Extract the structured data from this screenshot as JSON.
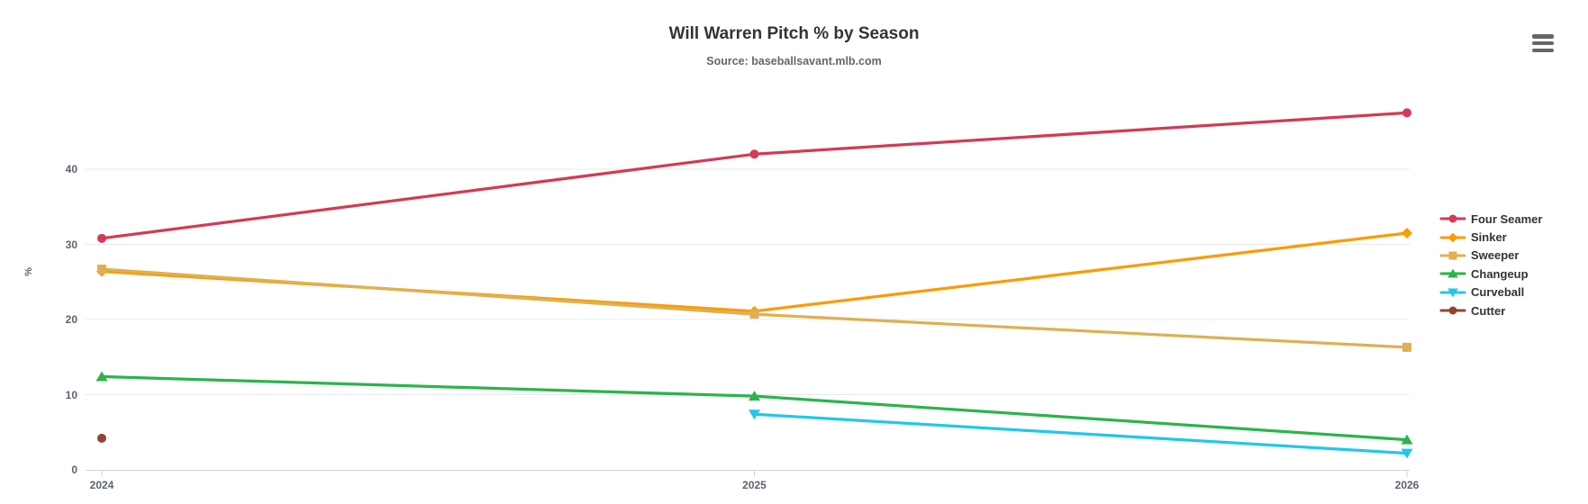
{
  "chart_data": {
    "type": "line",
    "title": "Will Warren Pitch % by Season",
    "subtitle": "Source: baseballsavant.mlb.com",
    "xlabel": "",
    "ylabel": "%",
    "categories": [
      "2024",
      "2025",
      "2026"
    ],
    "yticks": [
      0,
      10,
      20,
      30,
      40
    ],
    "ylim": [
      0,
      50
    ],
    "grid": "horizontal",
    "legend_position": "right",
    "series": [
      {
        "name": "Four Seamer",
        "color": "#D43A55",
        "marker": "circle",
        "values": [
          30.8,
          42.0,
          47.5
        ]
      },
      {
        "name": "Sinker",
        "color": "#FD9A00",
        "marker": "diamond",
        "values": [
          26.4,
          21.1,
          31.5
        ]
      },
      {
        "name": "Sweeper",
        "color": "#DFB052",
        "marker": "square",
        "values": [
          26.7,
          20.7,
          16.3
        ]
      },
      {
        "name": "Changeup",
        "color": "#2AB54A",
        "marker": "triangle-up",
        "values": [
          12.4,
          9.8,
          4.0
        ]
      },
      {
        "name": "Curveball",
        "color": "#20C8EC",
        "marker": "triangle-down",
        "values": [
          null,
          7.4,
          2.2
        ]
      },
      {
        "name": "Cutter",
        "color": "#964334",
        "marker": "circle",
        "values": [
          4.2,
          null,
          null
        ]
      }
    ]
  },
  "export_menu": {
    "icon": "hamburger-menu-icon"
  }
}
